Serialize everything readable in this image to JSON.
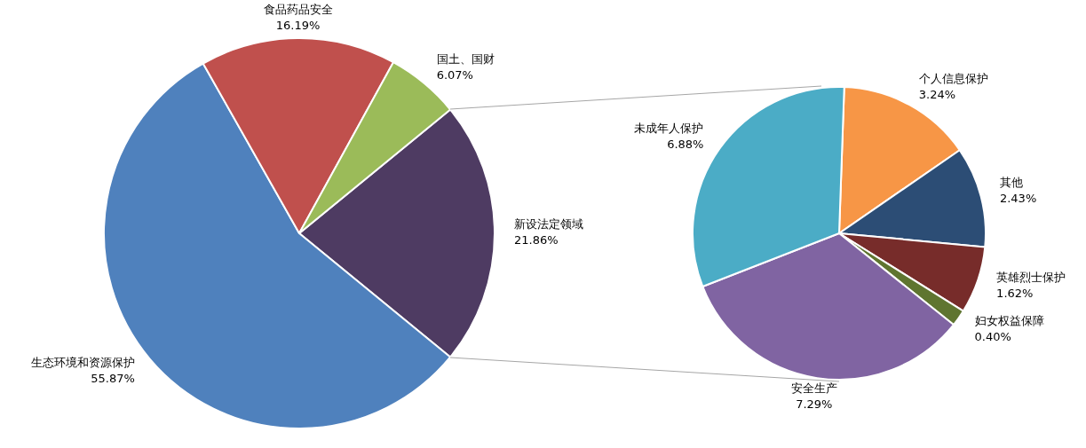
{
  "chart_data": [
    {
      "type": "pie",
      "categories": [
        "新设法定领域",
        "生态环境和资源保护",
        "食品药品安全",
        "国土、国财"
      ],
      "values": [
        21.86,
        55.87,
        16.19,
        6.07
      ],
      "colors": [
        "#4e3b62",
        "#4f81bd",
        "#c0504d",
        "#9bbb59"
      ],
      "value_labels": [
        "21.86%",
        "55.87%",
        "16.19%",
        "6.07%"
      ]
    },
    {
      "type": "pie",
      "categories": [
        "个人信息保护",
        "其他",
        "英雄烈士保护",
        "妇女权益保障",
        "安全生产",
        "未成年人保护"
      ],
      "values": [
        3.24,
        2.43,
        1.62,
        0.4,
        7.29,
        6.88
      ],
      "colors": [
        "#f79646",
        "#2c4d75",
        "#772c2a",
        "#5f7530",
        "#8064a2",
        "#4bacc6"
      ],
      "value_labels": [
        "3.24%",
        "2.43%",
        "1.62%",
        "0.40%",
        "7.29%",
        "6.88%"
      ]
    }
  ]
}
